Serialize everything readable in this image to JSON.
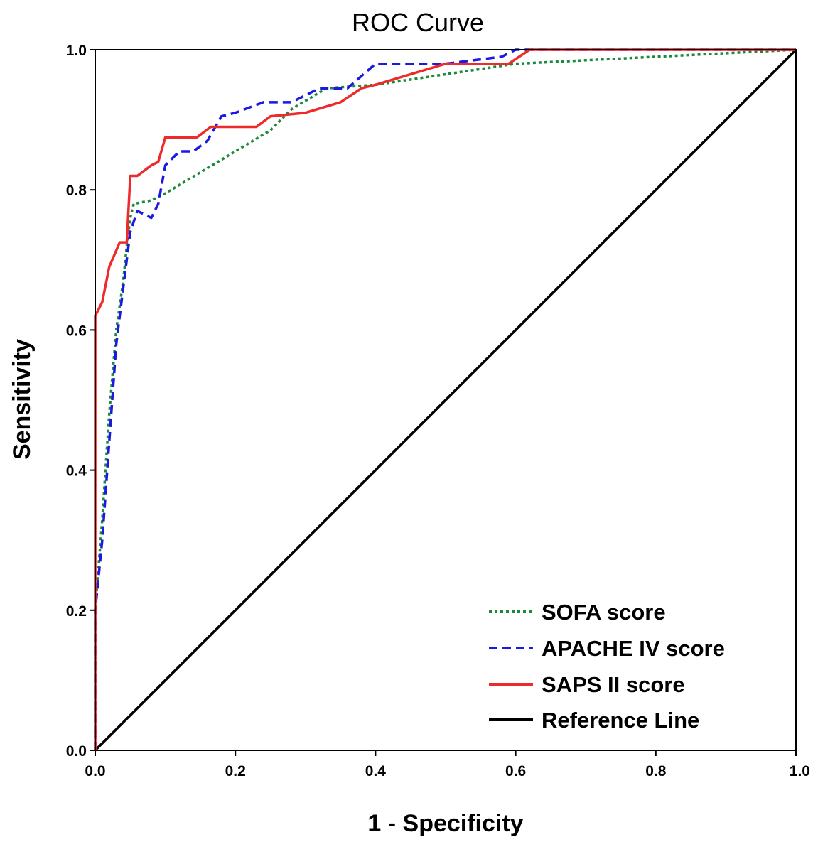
{
  "chart_data": {
    "type": "line",
    "title": "ROC Curve",
    "xlabel": "1 - Specificity",
    "ylabel": "Sensitivity",
    "xlim": [
      0,
      1
    ],
    "ylim": [
      0,
      1
    ],
    "x_ticks": [
      "0.0",
      "0.2",
      "0.4",
      "0.6",
      "0.8",
      "1.0"
    ],
    "y_ticks": [
      "0.0",
      "0.2",
      "0.4",
      "0.6",
      "0.8",
      "1.0"
    ],
    "grid": false,
    "legend_position": "bottom-right",
    "series": [
      {
        "name": "SOFA score",
        "color": "#1a8a3c",
        "dash": "dotted",
        "points": [
          [
            0,
            0
          ],
          [
            0,
            0.2
          ],
          [
            0.01,
            0.33
          ],
          [
            0.02,
            0.48
          ],
          [
            0.03,
            0.6
          ],
          [
            0.04,
            0.67
          ],
          [
            0.045,
            0.72
          ],
          [
            0.05,
            0.76
          ],
          [
            0.055,
            0.78
          ],
          [
            0.08,
            0.785
          ],
          [
            0.1,
            0.795
          ],
          [
            0.15,
            0.825
          ],
          [
            0.2,
            0.855
          ],
          [
            0.25,
            0.885
          ],
          [
            0.28,
            0.915
          ],
          [
            0.33,
            0.945
          ],
          [
            0.4,
            0.95
          ],
          [
            0.5,
            0.965
          ],
          [
            0.6,
            0.98
          ],
          [
            0.7,
            0.985
          ],
          [
            0.8,
            0.99
          ],
          [
            0.9,
            0.995
          ],
          [
            1,
            1
          ]
        ]
      },
      {
        "name": "APACHE IV score",
        "color": "#1a1ae0",
        "dash": "dashed",
        "points": [
          [
            0,
            0
          ],
          [
            0,
            0.2
          ],
          [
            0.01,
            0.3
          ],
          [
            0.02,
            0.44
          ],
          [
            0.03,
            0.58
          ],
          [
            0.04,
            0.66
          ],
          [
            0.05,
            0.74
          ],
          [
            0.06,
            0.77
          ],
          [
            0.08,
            0.76
          ],
          [
            0.09,
            0.78
          ],
          [
            0.1,
            0.835
          ],
          [
            0.12,
            0.855
          ],
          [
            0.14,
            0.855
          ],
          [
            0.16,
            0.87
          ],
          [
            0.18,
            0.905
          ],
          [
            0.2,
            0.91
          ],
          [
            0.24,
            0.925
          ],
          [
            0.28,
            0.925
          ],
          [
            0.32,
            0.945
          ],
          [
            0.36,
            0.945
          ],
          [
            0.4,
            0.98
          ],
          [
            0.5,
            0.98
          ],
          [
            0.58,
            0.99
          ],
          [
            0.6,
            1
          ],
          [
            1,
            1
          ]
        ]
      },
      {
        "name": "SAPS II score",
        "color": "#ee2a2a",
        "dash": "solid",
        "points": [
          [
            0,
            0
          ],
          [
            0,
            0.62
          ],
          [
            0.01,
            0.64
          ],
          [
            0.02,
            0.69
          ],
          [
            0.035,
            0.725
          ],
          [
            0.045,
            0.725
          ],
          [
            0.05,
            0.82
          ],
          [
            0.06,
            0.82
          ],
          [
            0.08,
            0.835
          ],
          [
            0.09,
            0.84
          ],
          [
            0.1,
            0.875
          ],
          [
            0.12,
            0.875
          ],
          [
            0.145,
            0.875
          ],
          [
            0.165,
            0.89
          ],
          [
            0.2,
            0.89
          ],
          [
            0.23,
            0.89
          ],
          [
            0.25,
            0.905
          ],
          [
            0.3,
            0.91
          ],
          [
            0.35,
            0.925
          ],
          [
            0.38,
            0.945
          ],
          [
            0.4,
            0.95
          ],
          [
            0.45,
            0.965
          ],
          [
            0.5,
            0.98
          ],
          [
            0.59,
            0.98
          ],
          [
            0.62,
            1
          ],
          [
            1,
            1
          ]
        ]
      },
      {
        "name": "Reference Line",
        "color": "#000000",
        "dash": "solid",
        "points": [
          [
            0,
            0
          ],
          [
            1,
            1
          ]
        ]
      }
    ]
  }
}
